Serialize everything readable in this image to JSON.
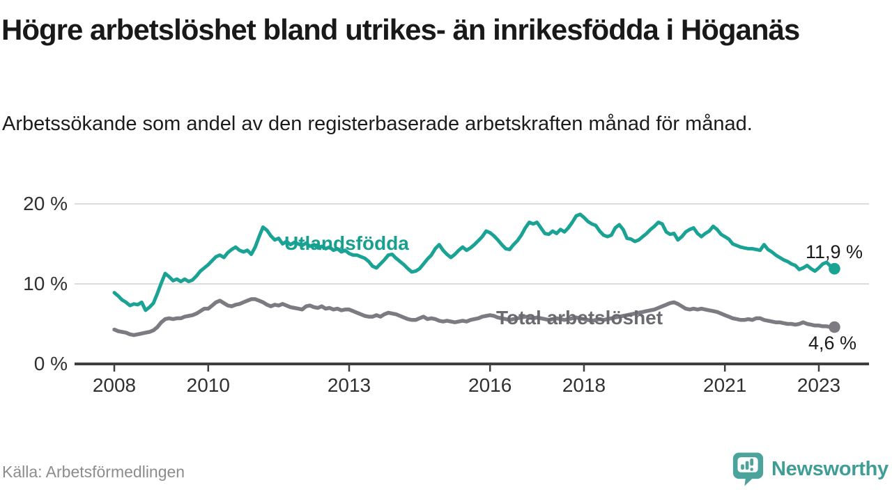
{
  "title": "Högre arbetslöshet bland utrikes- än inrikesfödda i Höganäs",
  "subtitle": "Arbetssökande som andel av den registerbaserade arbetskraften månad för månad.",
  "source": "Källa: Arbetsförmedlingen",
  "brand": {
    "name": "Newsworthy",
    "logo_icon": "speech-bubble-bar-chart-icon",
    "color": "#3f9d96",
    "logo_fill": "#4ba39c"
  },
  "chart_data": {
    "type": "line",
    "unit": "%",
    "grid": "horizontal-only",
    "style": {
      "grid_color": "#dcdcdc",
      "axis_color": "#3f3f3f",
      "tick_text_color": "#303030",
      "value_label_color": "#1a1a1a"
    },
    "x_axis": {
      "start_year": 2008,
      "end_year_approx": 2023.4,
      "ticks": [
        {
          "label": "2008",
          "year": 2008
        },
        {
          "label": "2010",
          "year": 2010
        },
        {
          "label": "2013",
          "year": 2013
        },
        {
          "label": "2016",
          "year": 2016
        },
        {
          "label": "2018",
          "year": 2018
        },
        {
          "label": "2021",
          "year": 2021
        },
        {
          "label": "2023",
          "year": 2023
        }
      ]
    },
    "y_axis": {
      "min": 0,
      "max": 20,
      "ticks": [
        {
          "label": "20 %",
          "value": 20
        },
        {
          "label": "10 %",
          "value": 10
        },
        {
          "label": "0 %",
          "value": 0
        }
      ]
    },
    "series": [
      {
        "name": "Utlandsfödda",
        "color": "#1aa394",
        "label_color": "#17a08f",
        "line_width": 5,
        "start_year": 2008,
        "points_per_year": 12,
        "end_label": "11,9 %",
        "end_value": 11.9,
        "values": [
          8.9,
          8.5,
          8.0,
          7.7,
          7.3,
          7.5,
          7.4,
          7.7,
          6.7,
          7.1,
          7.6,
          8.8,
          10.1,
          11.3,
          10.9,
          10.4,
          10.6,
          10.3,
          10.6,
          10.3,
          10.5,
          11.0,
          11.6,
          12.0,
          12.4,
          12.9,
          13.4,
          13.6,
          13.3,
          13.9,
          14.3,
          14.6,
          14.2,
          14.0,
          14.2,
          13.7,
          14.6,
          15.9,
          17.1,
          16.7,
          16.0,
          15.5,
          15.7,
          15.0,
          15.3,
          14.9,
          15.2,
          15.0,
          14.8,
          15.1,
          14.7,
          14.9,
          14.5,
          14.7,
          14.4,
          14.6,
          14.2,
          14.4,
          14.0,
          14.2,
          13.8,
          13.6,
          13.6,
          13.4,
          13.2,
          12.8,
          12.2,
          12.0,
          12.5,
          13.0,
          13.6,
          13.7,
          13.2,
          12.8,
          12.4,
          11.9,
          11.5,
          11.6,
          11.9,
          12.5,
          13.1,
          13.6,
          14.4,
          14.9,
          14.2,
          13.7,
          13.3,
          13.7,
          14.2,
          14.6,
          14.2,
          14.5,
          14.9,
          15.4,
          15.9,
          16.6,
          16.4,
          16.0,
          15.5,
          14.9,
          14.4,
          14.3,
          14.9,
          15.4,
          16.1,
          17.0,
          17.7,
          17.5,
          17.7,
          17.0,
          16.3,
          16.2,
          16.6,
          16.3,
          16.8,
          16.5,
          17.0,
          17.7,
          18.5,
          18.7,
          18.3,
          17.8,
          17.5,
          17.3,
          16.6,
          16.1,
          15.9,
          16.1,
          17.0,
          17.4,
          16.8,
          15.7,
          15.6,
          15.3,
          15.5,
          15.9,
          16.3,
          16.8,
          17.2,
          17.7,
          17.5,
          16.5,
          16.2,
          16.3,
          15.5,
          15.9,
          16.5,
          16.8,
          17.0,
          16.3,
          15.9,
          16.3,
          16.6,
          17.2,
          16.8,
          16.2,
          15.9,
          15.6,
          15.0,
          14.8,
          14.6,
          14.5,
          14.4,
          14.4,
          14.3,
          14.2,
          14.9,
          14.3,
          14.0,
          13.6,
          13.3,
          13.0,
          12.8,
          12.5,
          12.3,
          11.8,
          12.0,
          12.3,
          11.9,
          11.6,
          12.0,
          12.5,
          12.7,
          12.2,
          11.9
        ]
      },
      {
        "name": "Total arbetslöshet",
        "color": "#7d7b81",
        "label_color": "#6b6a70",
        "line_width": 5.5,
        "start_year": 2008,
        "points_per_year": 12,
        "end_label": "4,6 %",
        "end_value": 4.6,
        "values": [
          4.3,
          4.1,
          4.0,
          3.9,
          3.7,
          3.6,
          3.7,
          3.8,
          3.9,
          4.0,
          4.2,
          4.6,
          5.2,
          5.6,
          5.7,
          5.6,
          5.7,
          5.7,
          5.9,
          6.0,
          6.1,
          6.3,
          6.6,
          6.9,
          6.9,
          7.3,
          7.7,
          7.9,
          7.6,
          7.3,
          7.2,
          7.4,
          7.5,
          7.7,
          7.9,
          8.1,
          8.1,
          7.9,
          7.7,
          7.4,
          7.2,
          7.4,
          7.3,
          7.5,
          7.3,
          7.1,
          7.0,
          6.9,
          6.8,
          7.2,
          7.3,
          7.1,
          7.0,
          7.2,
          6.9,
          7.0,
          6.8,
          6.9,
          6.7,
          6.8,
          6.8,
          6.6,
          6.4,
          6.2,
          6.0,
          5.9,
          5.9,
          6.1,
          5.9,
          6.2,
          6.4,
          6.3,
          6.2,
          6.0,
          5.8,
          5.6,
          5.5,
          5.5,
          5.7,
          5.9,
          5.6,
          5.7,
          5.6,
          5.4,
          5.3,
          5.4,
          5.3,
          5.2,
          5.3,
          5.4,
          5.3,
          5.5,
          5.6,
          5.7,
          5.9,
          6.0,
          6.1,
          6.0,
          5.8,
          5.7,
          5.6,
          5.5,
          5.6,
          5.7,
          5.8,
          5.9,
          5.8,
          5.7,
          5.8,
          5.7,
          5.6,
          5.5,
          5.6,
          5.7,
          5.6,
          5.5,
          5.6,
          5.7,
          5.8,
          5.7,
          5.6,
          5.5,
          5.4,
          5.5,
          5.6,
          5.5,
          5.6,
          5.7,
          5.8,
          5.9,
          6.0,
          6.1,
          6.2,
          6.3,
          6.4,
          6.5,
          6.6,
          6.7,
          6.8,
          7.0,
          7.2,
          7.4,
          7.6,
          7.7,
          7.5,
          7.2,
          6.9,
          6.8,
          6.9,
          6.8,
          6.9,
          6.8,
          6.7,
          6.6,
          6.5,
          6.3,
          6.1,
          5.9,
          5.7,
          5.6,
          5.5,
          5.5,
          5.6,
          5.5,
          5.7,
          5.7,
          5.5,
          5.4,
          5.3,
          5.2,
          5.2,
          5.1,
          5.0,
          5.0,
          4.9,
          5.0,
          5.2,
          5.0,
          4.9,
          4.8,
          4.8,
          4.7,
          4.7,
          4.6,
          4.6
        ]
      }
    ]
  }
}
